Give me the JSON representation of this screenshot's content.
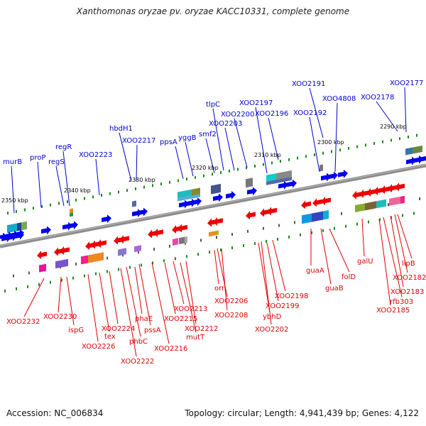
{
  "title": "Xanthomonas oryzae pv. oryzae KACC10331, complete genome",
  "accession": "Accession: NC_006834",
  "summary": "Topology: circular; Length: 4,941,439 bp; Genes: 4,122",
  "colors": {
    "backbone": "#909090",
    "forward_label": "#0000cc",
    "reverse_label": "#dd0000",
    "forward_gene": "#0000ee",
    "reverse_gene": "#ee0000",
    "tick": "#1a8a1a"
  },
  "scale_labels": [
    "2350 kbp",
    "2340 kbp",
    "2330 kbp",
    "2320 kbp",
    "2310 kbp",
    "2300 kbp",
    "2290 kbp"
  ],
  "forward_genes": [
    "murB",
    "proP",
    "regS",
    "regR",
    "XOO2223",
    "hbdH1",
    "XOO2217",
    "ppsA",
    "yggB",
    "smf2",
    "tlpC",
    "XOO2203",
    "XOO2200",
    "XOO2197",
    "XOO2196",
    "XOO2192",
    "XOO2191",
    "XOO4808",
    "XOO2178",
    "XOO2177"
  ],
  "reverse_genes": [
    "XOO2232",
    "XOO2230",
    "ispG",
    "XOO2226",
    "tex",
    "XOO2224",
    "XOO2222",
    "phbC",
    "phaE",
    "pssA",
    "XOO2216",
    "XOO2215",
    "XOO2213",
    "XOO2212",
    "mutT",
    "orn",
    "XOO2206",
    "XOO2208",
    "ybhD",
    "XOO2202",
    "XOO2199",
    "XOO2198",
    "guaA",
    "guaB",
    "folD",
    "galU",
    "XOO2185",
    "rfb303",
    "XOO2183",
    "XOO2182",
    "lipB"
  ]
}
